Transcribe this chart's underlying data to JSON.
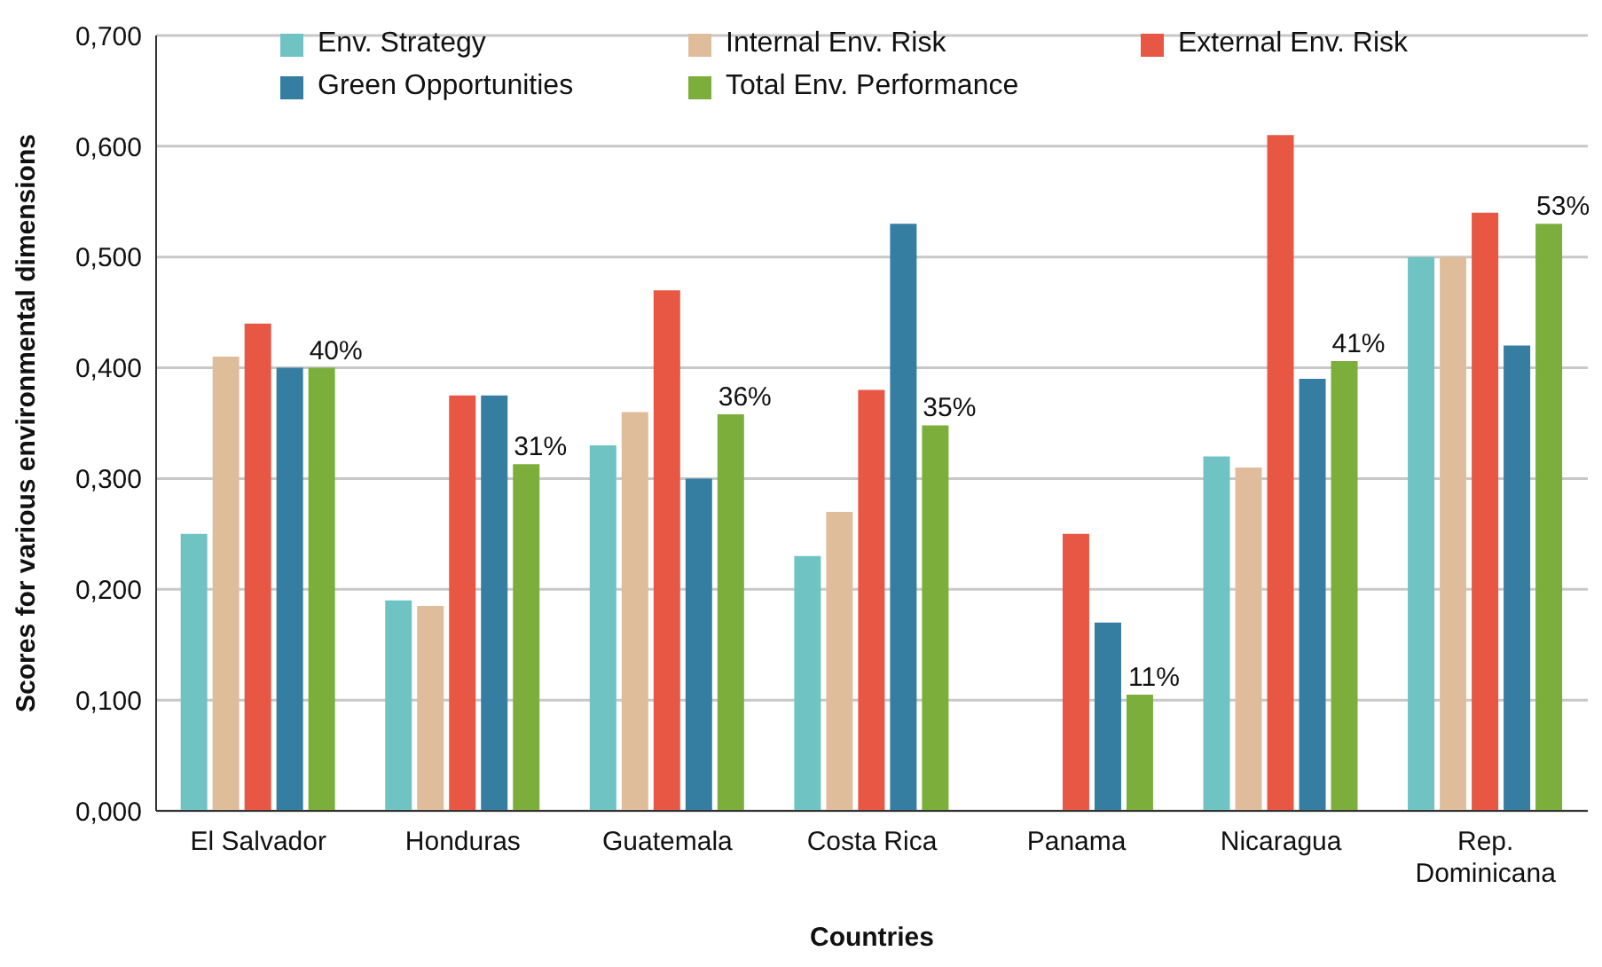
{
  "chart_data": {
    "type": "bar",
    "xlabel": "Countries",
    "ylabel": "Scores for various environmental dimensions",
    "categories": [
      "El Salvador",
      "Honduras",
      "Guatemala",
      "Costa Rica",
      "Panama",
      "Nicaragua",
      "Rep. Dominicana"
    ],
    "series": [
      {
        "name": "Env. Strategy",
        "color": "#6fc3c3",
        "values": [
          0.25,
          0.19,
          0.33,
          0.23,
          null,
          0.32,
          0.5
        ]
      },
      {
        "name": "Internal Env. Risk",
        "color": "#dfbd9b",
        "values": [
          0.41,
          0.185,
          0.36,
          0.27,
          null,
          0.31,
          0.5
        ]
      },
      {
        "name": "External Env. Risk",
        "color": "#e85744",
        "values": [
          0.44,
          0.375,
          0.47,
          0.38,
          0.25,
          0.61,
          0.54
        ]
      },
      {
        "name": "Green Opportunities",
        "color": "#357ea2",
        "values": [
          0.4,
          0.375,
          0.3,
          0.53,
          0.17,
          0.39,
          0.42
        ]
      },
      {
        "name": "Total Env. Performance",
        "color": "#7cae3b",
        "values": [
          0.4,
          0.313,
          0.358,
          0.348,
          0.105,
          0.406,
          0.53
        ],
        "value_labels": [
          "40%",
          "31%",
          "36%",
          "35%",
          "11%",
          "41%",
          "53%"
        ]
      }
    ],
    "ylim": [
      0,
      0.7
    ],
    "yticks": [
      {
        "value": 0,
        "label": "0,000"
      },
      {
        "value": 0.1,
        "label": "0,100"
      },
      {
        "value": 0.2,
        "label": "0,200"
      },
      {
        "value": 0.3,
        "label": "0,300"
      },
      {
        "value": 0.4,
        "label": "0,400"
      },
      {
        "value": 0.5,
        "label": "0,500"
      },
      {
        "value": 0.6,
        "label": "0,600"
      },
      {
        "value": 0.7,
        "label": "0,700"
      }
    ],
    "grid": "y",
    "legend": "top"
  }
}
